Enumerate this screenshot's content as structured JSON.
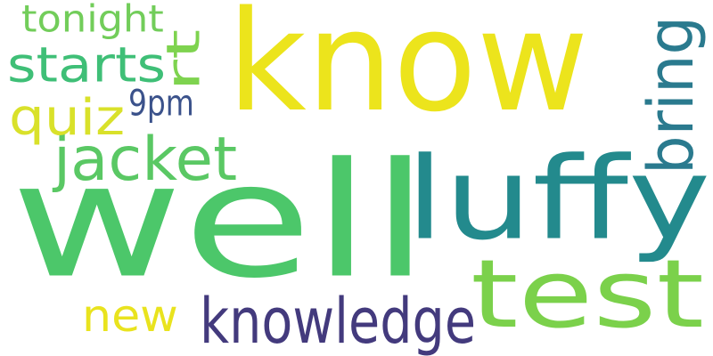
{
  "words": [
    {
      "text": "know",
      "color": "#ece41c",
      "rotated": false
    },
    {
      "text": "well",
      "color": "#4cc76a",
      "rotated": false
    },
    {
      "text": "luffy",
      "color": "#238a8d",
      "rotated": false
    },
    {
      "text": "test",
      "color": "#7bd14b",
      "rotated": false
    },
    {
      "text": "knowledge",
      "color": "#433a7d",
      "rotated": false
    },
    {
      "text": "jacket",
      "color": "#5ac864",
      "rotated": false
    },
    {
      "text": "bring",
      "color": "#2a7a8e",
      "rotated": true
    },
    {
      "text": "starts",
      "color": "#3fbf77",
      "rotated": false
    },
    {
      "text": "quiz",
      "color": "#d9e12a",
      "rotated": false
    },
    {
      "text": "rt",
      "color": "#7ed34f",
      "rotated": true
    },
    {
      "text": "new",
      "color": "#e9e31e",
      "rotated": false
    },
    {
      "text": "tonight",
      "color": "#72cd5a",
      "rotated": false
    },
    {
      "text": "9pm",
      "color": "#3b528b",
      "rotated": false
    }
  ]
}
